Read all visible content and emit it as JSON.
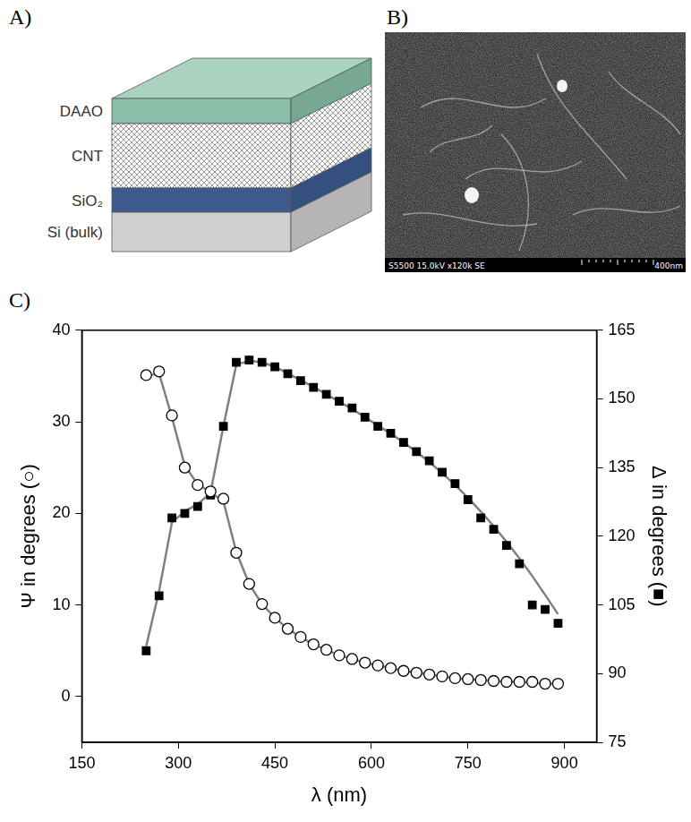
{
  "panels": {
    "A": {
      "letter": "A)",
      "layers": [
        "DAAO",
        "CNT",
        "SiO₂",
        "Si (bulk)"
      ]
    },
    "B": {
      "letter": "B)",
      "caption": "S5500 15.0kV x120k SE",
      "scale_label": "400nm"
    },
    "C": {
      "letter": "C)"
    }
  },
  "chart_data": {
    "type": "scatter",
    "x_label": "λ (nm)",
    "y_label": "Ψ in degrees (○)",
    "y2_label": "Δ in degrees (■)",
    "xlim": [
      150,
      950
    ],
    "xticks": [
      150,
      300,
      450,
      600,
      750,
      900
    ],
    "ylim": [
      -5,
      40
    ],
    "yticks": [
      0,
      10,
      20,
      30,
      40
    ],
    "y2lim": [
      75,
      165
    ],
    "y2ticks": [
      75,
      90,
      105,
      120,
      135,
      150,
      165
    ],
    "grid": false,
    "x": [
      250,
      270,
      290,
      310,
      330,
      350,
      370,
      390,
      410,
      430,
      450,
      470,
      490,
      510,
      530,
      550,
      570,
      590,
      610,
      630,
      650,
      670,
      690,
      710,
      730,
      750,
      770,
      790,
      810,
      830,
      850,
      870,
      890
    ],
    "series": [
      {
        "type": "line",
        "axis": "y",
        "color": "#808080",
        "marker": "none",
        "line_style": "solid",
        "values": [
          35.0,
          35.3,
          30.5,
          25.2,
          23.2,
          22.3,
          21.3,
          15.8,
          12.3,
          10.1,
          8.6,
          7.4,
          6.5,
          5.7,
          5.1,
          4.5,
          4.1,
          3.7,
          3.4,
          3.1,
          2.8,
          2.6,
          2.4,
          2.2,
          2.0,
          1.9,
          1.8,
          1.7,
          1.6,
          1.6,
          1.5,
          1.4,
          1.4
        ]
      },
      {
        "type": "scatter",
        "axis": "y",
        "color": "#000000",
        "marker": "circle_open",
        "values": [
          35.1,
          35.5,
          30.7,
          25.0,
          23.1,
          22.4,
          21.6,
          15.7,
          12.3,
          10.1,
          8.6,
          7.4,
          6.5,
          5.7,
          5.1,
          4.5,
          4.1,
          3.7,
          3.4,
          3.1,
          2.8,
          2.6,
          2.4,
          2.2,
          2.0,
          1.9,
          1.8,
          1.7,
          1.6,
          1.6,
          1.6,
          1.4,
          1.4
        ]
      },
      {
        "type": "line",
        "axis": "y2",
        "color": "#808080",
        "marker": "none",
        "line_style": "solid",
        "values": [
          96,
          108,
          123,
          125.5,
          127,
          129.5,
          144,
          157.5,
          158.3,
          158,
          157,
          155.6,
          154.1,
          152.6,
          151,
          149.4,
          147.8,
          146,
          144.2,
          142.4,
          140.5,
          138.4,
          136.2,
          133.8,
          131.2,
          128.4,
          125.4,
          122.2,
          118.8,
          115.2,
          111.3,
          107.2,
          103
        ]
      },
      {
        "type": "scatter",
        "axis": "y2",
        "color": "#000000",
        "marker": "square",
        "values": [
          95,
          107,
          124,
          125,
          126.5,
          129,
          144,
          158,
          158.5,
          158,
          157,
          155.5,
          154,
          152.5,
          151,
          149.5,
          148,
          146,
          144,
          142.5,
          140.5,
          138.5,
          136.5,
          134,
          131.5,
          128,
          124,
          121.5,
          118,
          114,
          105,
          104,
          101
        ]
      }
    ]
  }
}
